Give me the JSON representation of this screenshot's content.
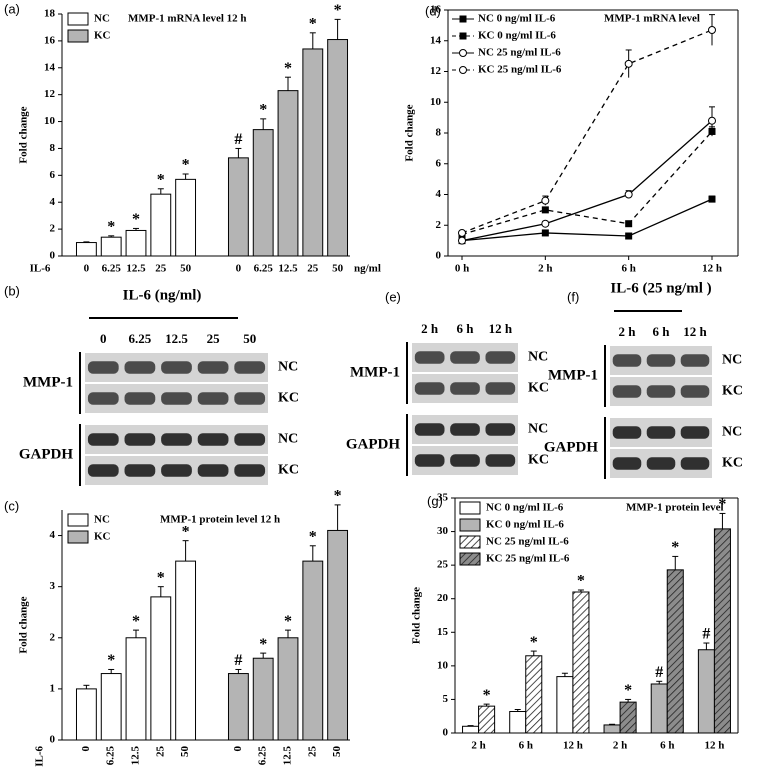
{
  "chart_data": [
    {
      "type": "bar",
      "label": "(a)",
      "title": "MMP-1 mRNA level 12 h",
      "ylabel": "Fold change",
      "x_prefix": "IL-6",
      "x_unit": "ng/ml",
      "categories": [
        "0",
        "6.25",
        "12.5",
        "25",
        "50"
      ],
      "series": [
        {
          "name": "NC",
          "color": "#ffffff",
          "values": [
            1.0,
            1.4,
            1.9,
            4.6,
            5.7
          ],
          "errors": [
            0.05,
            0.1,
            0.15,
            0.4,
            0.4
          ],
          "marks": [
            null,
            "*",
            "*",
            "*",
            "*"
          ]
        },
        {
          "name": "KC",
          "color": "#b4b4b4",
          "values": [
            7.3,
            9.4,
            12.3,
            15.4,
            16.1
          ],
          "errors": [
            0.7,
            0.8,
            1.0,
            1.2,
            1.5
          ],
          "marks": [
            "#",
            "*",
            "*",
            "*",
            "*"
          ]
        }
      ],
      "ylim": [
        0,
        18
      ],
      "yticks": [
        0,
        2,
        4,
        6,
        8,
        10,
        12,
        14,
        16,
        18
      ]
    },
    {
      "type": "bar",
      "label": "(c)",
      "title": "MMP-1 protein level 12 h",
      "ylabel": "Fold change",
      "x_prefix": "IL-6",
      "categories": [
        "0",
        "6.25",
        "12.5",
        "25",
        "50"
      ],
      "series": [
        {
          "name": "NC",
          "color": "#ffffff",
          "values": [
            1.0,
            1.3,
            2.0,
            2.8,
            3.5
          ],
          "errors": [
            0.07,
            0.08,
            0.15,
            0.2,
            0.4
          ],
          "marks": [
            null,
            "*",
            "*",
            "*",
            "*"
          ]
        },
        {
          "name": "KC",
          "color": "#b4b4b4",
          "values": [
            1.3,
            1.6,
            2.0,
            3.5,
            4.1
          ],
          "errors": [
            0.08,
            0.1,
            0.15,
            0.3,
            0.5
          ],
          "marks": [
            "#",
            "*",
            "*",
            "*",
            "*"
          ]
        }
      ],
      "ylim": [
        0,
        4.5
      ],
      "yticks": [
        0,
        1,
        2,
        3,
        4
      ]
    },
    {
      "type": "line",
      "label": "(d)",
      "title": "MMP-1 mRNA level",
      "ylabel": "Fold change",
      "categories": [
        "0 h",
        "2 h",
        "6 h",
        "12 h"
      ],
      "series": [
        {
          "name": "NC 0 ng/ml IL-6",
          "color": "#000000",
          "dashed": false,
          "marker": "square",
          "filled": true,
          "values": [
            1.0,
            1.5,
            1.3,
            3.7
          ],
          "errors": [
            0.05,
            0.1,
            0.1,
            0.2
          ]
        },
        {
          "name": "KC 0 ng/ml IL-6",
          "color": "#000000",
          "dashed": true,
          "marker": "square",
          "filled": true,
          "values": [
            1.4,
            3.0,
            2.1,
            8.1
          ],
          "errors": [
            0.1,
            0.15,
            0.15,
            0.3
          ]
        },
        {
          "name": "NC 25 ng/ml IL-6",
          "color": "#000000",
          "dashed": false,
          "marker": "circle",
          "filled": false,
          "values": [
            1.0,
            2.1,
            4.0,
            8.8
          ],
          "errors": [
            0.1,
            0.15,
            0.25,
            0.9
          ]
        },
        {
          "name": "KC 25 ng/ml IL-6",
          "color": "#000000",
          "dashed": true,
          "marker": "circle",
          "filled": false,
          "values": [
            1.5,
            3.6,
            12.5,
            14.7
          ],
          "errors": [
            0.1,
            0.3,
            0.9,
            1.0
          ]
        }
      ],
      "ylim": [
        0,
        16
      ],
      "yticks": [
        0,
        2,
        4,
        6,
        8,
        10,
        12,
        14,
        16
      ]
    },
    {
      "type": "bar",
      "label": "(g)",
      "title": "MMP-1 protein level",
      "ylabel": "Fold change",
      "categories": [
        "2 h",
        "6 h",
        "12 h"
      ],
      "series": [
        {
          "name": "NC 0 ng/ml IL-6",
          "color": "#ffffff",
          "hatch": false,
          "values": [
            1.0,
            3.2,
            8.4
          ],
          "errors": [
            0.1,
            0.3,
            0.5
          ],
          "marks": [
            null,
            null,
            null
          ]
        },
        {
          "name": "KC 0 ng/ml IL-6",
          "color": "#b4b4b4",
          "hatch": false,
          "values": [
            1.2,
            7.3,
            12.4
          ],
          "errors": [
            0.1,
            0.4,
            1.0
          ],
          "marks": [
            null,
            "#",
            "#"
          ]
        },
        {
          "name": "NC 25 ng/ml IL-6",
          "color": "#ffffff",
          "hatch": true,
          "values": [
            4.0,
            11.5,
            21.0
          ],
          "errors": [
            0.3,
            0.7,
            0.3
          ],
          "marks": [
            "*",
            "*",
            "*"
          ]
        },
        {
          "name": "KC 25 ng/ml IL-6",
          "color": "#8c8c8c",
          "hatch": true,
          "values": [
            4.6,
            24.3,
            30.4
          ],
          "errors": [
            0.4,
            2.0,
            2.3
          ],
          "marks": [
            "*",
            "*",
            "*"
          ]
        }
      ],
      "ylim": [
        0,
        35
      ],
      "yticks": [
        0,
        5,
        10,
        15,
        20,
        25,
        30,
        35
      ]
    }
  ],
  "blots": [
    {
      "label": "(b)",
      "header": "IL-6 (ng/ml)",
      "lanes": [
        "0",
        "6.25",
        "12.5",
        "25",
        "50"
      ],
      "proteins": [
        "MMP-1",
        "GAPDH"
      ],
      "rows": [
        "NC",
        "KC"
      ]
    },
    {
      "label": "(e)",
      "lanes": [
        "2 h",
        "6 h",
        "12 h"
      ],
      "proteins": [
        "MMP-1",
        "GAPDH"
      ],
      "rows": [
        "NC",
        "KC"
      ]
    },
    {
      "label": "(f)",
      "header": "IL-6 (25 ng/ml )",
      "lanes": [
        "2 h",
        "6 h",
        "12 h"
      ],
      "proteins": [
        "MMP-1",
        "GAPDH"
      ],
      "rows": [
        "NC",
        "KC"
      ]
    }
  ]
}
